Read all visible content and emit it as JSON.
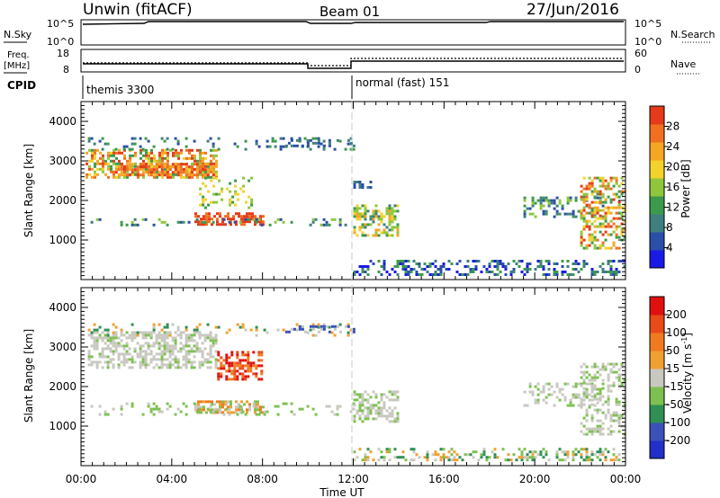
{
  "header": {
    "station": "Unwin (fitACF)",
    "beam": "Beam 01",
    "date": "27/Jun/2016"
  },
  "side_labels": {
    "nsky": "N.Sky",
    "nsearch": "N.Search",
    "freq_line1": "Freq.",
    "freq_line2": "[MHz]",
    "nave": "Nave",
    "cpid": "CPID"
  },
  "nsky_axis": {
    "left_ticks": [
      "10^5",
      "10^0"
    ],
    "right_ticks": [
      "10^5",
      "10^0"
    ]
  },
  "freq_axis": {
    "left_ticks": [
      "18",
      "8"
    ],
    "right_ticks": [
      "60",
      "0"
    ]
  },
  "cpid": {
    "segments": [
      {
        "label": "themis 3300",
        "start_hour": 0
      },
      {
        "label": "normal (fast) 151",
        "start_hour": 12
      }
    ]
  },
  "colors": {
    "power_scale": [
      "#1a1ae6",
      "#2a4fa8",
      "#3f7f7f",
      "#3c9a4c",
      "#8fc63c",
      "#f2d22b",
      "#f5a623",
      "#f07020",
      "#e53b1a"
    ],
    "velocity_scale": [
      "#2030c8",
      "#3a52b8",
      "#2f8f55",
      "#7ec050",
      "#c8c8c0",
      "#f0a030",
      "#f07a20",
      "#e84a18",
      "#e01010"
    ],
    "axis": "#000000",
    "grid_line": "#b0b0b0"
  },
  "chart_data": [
    {
      "type": "heatmap",
      "name": "power",
      "ylabel": "Slant Range [km]",
      "xlabel": "",
      "y_ticks": [
        "4000",
        "3000",
        "2000",
        "1000"
      ],
      "ylim": [
        0,
        4500
      ],
      "xlim_hours": [
        0,
        24
      ],
      "colorbar_label": "Power [dB]",
      "colorbar_ticks": [
        "28",
        "24",
        "20",
        "16",
        "12",
        "8",
        "4"
      ],
      "colorbar_range": [
        0,
        32
      ]
    },
    {
      "type": "heatmap",
      "name": "velocity",
      "ylabel": "Slant Range [km]",
      "xlabel": "Time UT",
      "y_ticks": [
        "4000",
        "3000",
        "2000",
        "1000"
      ],
      "ylim": [
        0,
        4500
      ],
      "xlim_hours": [
        0,
        24
      ],
      "x_ticks": [
        "00:00",
        "04:00",
        "08:00",
        "12:00",
        "16:00",
        "20:00",
        "00:00"
      ],
      "colorbar_label_main": "Velocity [m s",
      "colorbar_label_sup": "-1",
      "colorbar_label_end": "]",
      "colorbar_ticks": [
        "200",
        "100",
        "50",
        "15",
        "-15",
        "-50",
        "-100",
        "-200"
      ]
    }
  ]
}
